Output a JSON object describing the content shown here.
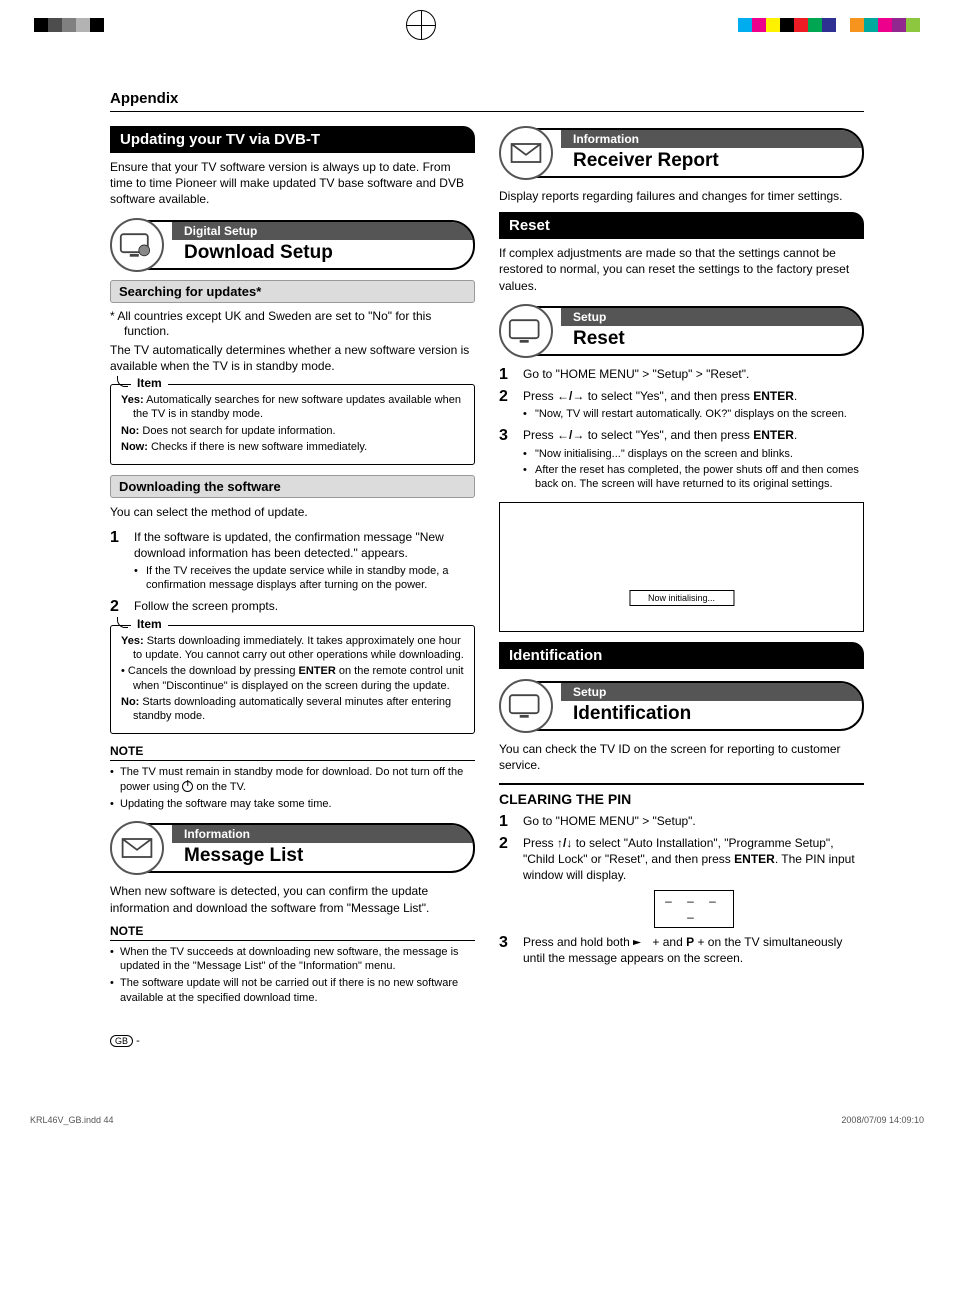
{
  "crop_colors_left": [
    "#ffffff",
    "#000000",
    "#4d4d4d",
    "#808080",
    "#b3b3b3",
    "#000000",
    "#ffffff"
  ],
  "crop_colors_right": [
    "#ffffff",
    "#00aeef",
    "#ec008c",
    "#fff200",
    "#000000",
    "#ed1c24",
    "#00a651",
    "#2e3192",
    "#ffffff",
    "#f7941d",
    "#00a99d",
    "#ec008c",
    "#92278f",
    "#8dc63f",
    "#ffffff"
  ],
  "appendix": "Appendix",
  "left": {
    "h1": "Updating your TV via DVB-T",
    "intro": "Ensure that your TV software version is always up to date. From time to time Pioneer will make updated TV base software and DVB software available.",
    "menu1": {
      "cat": "Digital Setup",
      "item": "Download Setup"
    },
    "sub1": "Searching for updates*",
    "sub1_note": "* All countries except UK and Sweden are set to \"No\" for this function.",
    "sub1_body": "The TV automatically determines whether a new software version is available when the TV is in standby mode.",
    "itembox1_label": "Item",
    "itembox1": [
      {
        "k": "Yes:",
        "v": " Automatically searches for new software updates available when the TV is in standby mode."
      },
      {
        "k": "No:",
        "v": " Does not search for update information."
      },
      {
        "k": "Now:",
        "v": " Checks if there is new software immediately."
      }
    ],
    "sub2": "Downloading the software",
    "sub2_body": "You can select the method of update.",
    "steps1": [
      {
        "t": "If the software is updated, the confirmation message \"New download information has been detected.\" appears.",
        "bullets": [
          "If the TV receives the update service while in standby mode, a confirmation message displays after turning on the power."
        ]
      },
      {
        "t": "Follow the screen prompts."
      }
    ],
    "itembox2_label": "Item",
    "itembox2": [
      {
        "k": "Yes:",
        "v": " Starts downloading immediately. It takes approximately one hour to update. You cannot carry out other operations while downloading."
      },
      {
        "k": "•",
        "v": " Cancels the download by pressing ENTER on the remote control unit when \"Discontinue\" is displayed on the screen during the update.",
        "bullet": true
      },
      {
        "k": "No:",
        "v": " Starts downloading automatically several minutes after entering standby mode."
      }
    ],
    "note1_head": "NOTE",
    "note1": [
      "The TV must remain in standby mode for download. Do not turn off the power using __POWER__ on the TV.",
      "Updating the software may take some time."
    ],
    "menu2": {
      "cat": "Information",
      "item": "Message List"
    },
    "menu2_body": "When new software is detected, you can confirm the update information and download the software from \"Message List\".",
    "note2_head": "NOTE",
    "note2": [
      "When the TV succeeds at downloading new software, the message is updated in the \"Message List\" of the \"Information\" menu.",
      "The software update will not be carried out if there is no new software available at the specified download time."
    ]
  },
  "right": {
    "menu1": {
      "cat": "Information",
      "item": "Receiver Report"
    },
    "menu1_body": "Display reports regarding failures and changes for timer settings.",
    "h2": "Reset",
    "h2_body": "If complex adjustments are made so that the settings cannot be restored to normal, you can reset the settings to the factory preset values.",
    "menu2": {
      "cat": "Setup",
      "item": "Reset"
    },
    "steps2": [
      {
        "t": "Go to \"HOME MENU\" > \"Setup\" > \"Reset\"."
      },
      {
        "t": "Press __LR__ to select \"Yes\", and then press ENTER.",
        "bullets": [
          "\"Now, TV will restart automatically. OK?\" displays on the screen."
        ]
      },
      {
        "t": "Press __LR__ to select \"Yes\", and then press ENTER.",
        "bullets": [
          "\"Now initialising...\" displays on the screen and blinks.",
          "After the reset has completed, the power shuts off and then comes back on. The screen will have returned to its original settings."
        ]
      }
    ],
    "screen_text": "Now initialising...",
    "h3": "Identification",
    "menu3": {
      "cat": "Setup",
      "item": "Identification"
    },
    "menu3_body": "You can check the TV ID on the screen for reporting to customer service.",
    "h4": "CLEARING THE PIN",
    "steps3": [
      {
        "t": "Go to \"HOME MENU\" > \"Setup\"."
      },
      {
        "t": "Press __UD__ to select \"Auto Installation\", \"Programme Setup\", \"Child Lock\" or \"Reset\", and then press ENTER. The PIN input window will display."
      },
      {
        "t": "Press and hold both __VOL__ + and P + on the TV simultaneously until the message appears on the screen."
      }
    ],
    "pin": "– – – –"
  },
  "footer": {
    "file": "KRL46V_GB.indd   44",
    "ts": "2008/07/09   14:09:10"
  },
  "page_marker": "-"
}
